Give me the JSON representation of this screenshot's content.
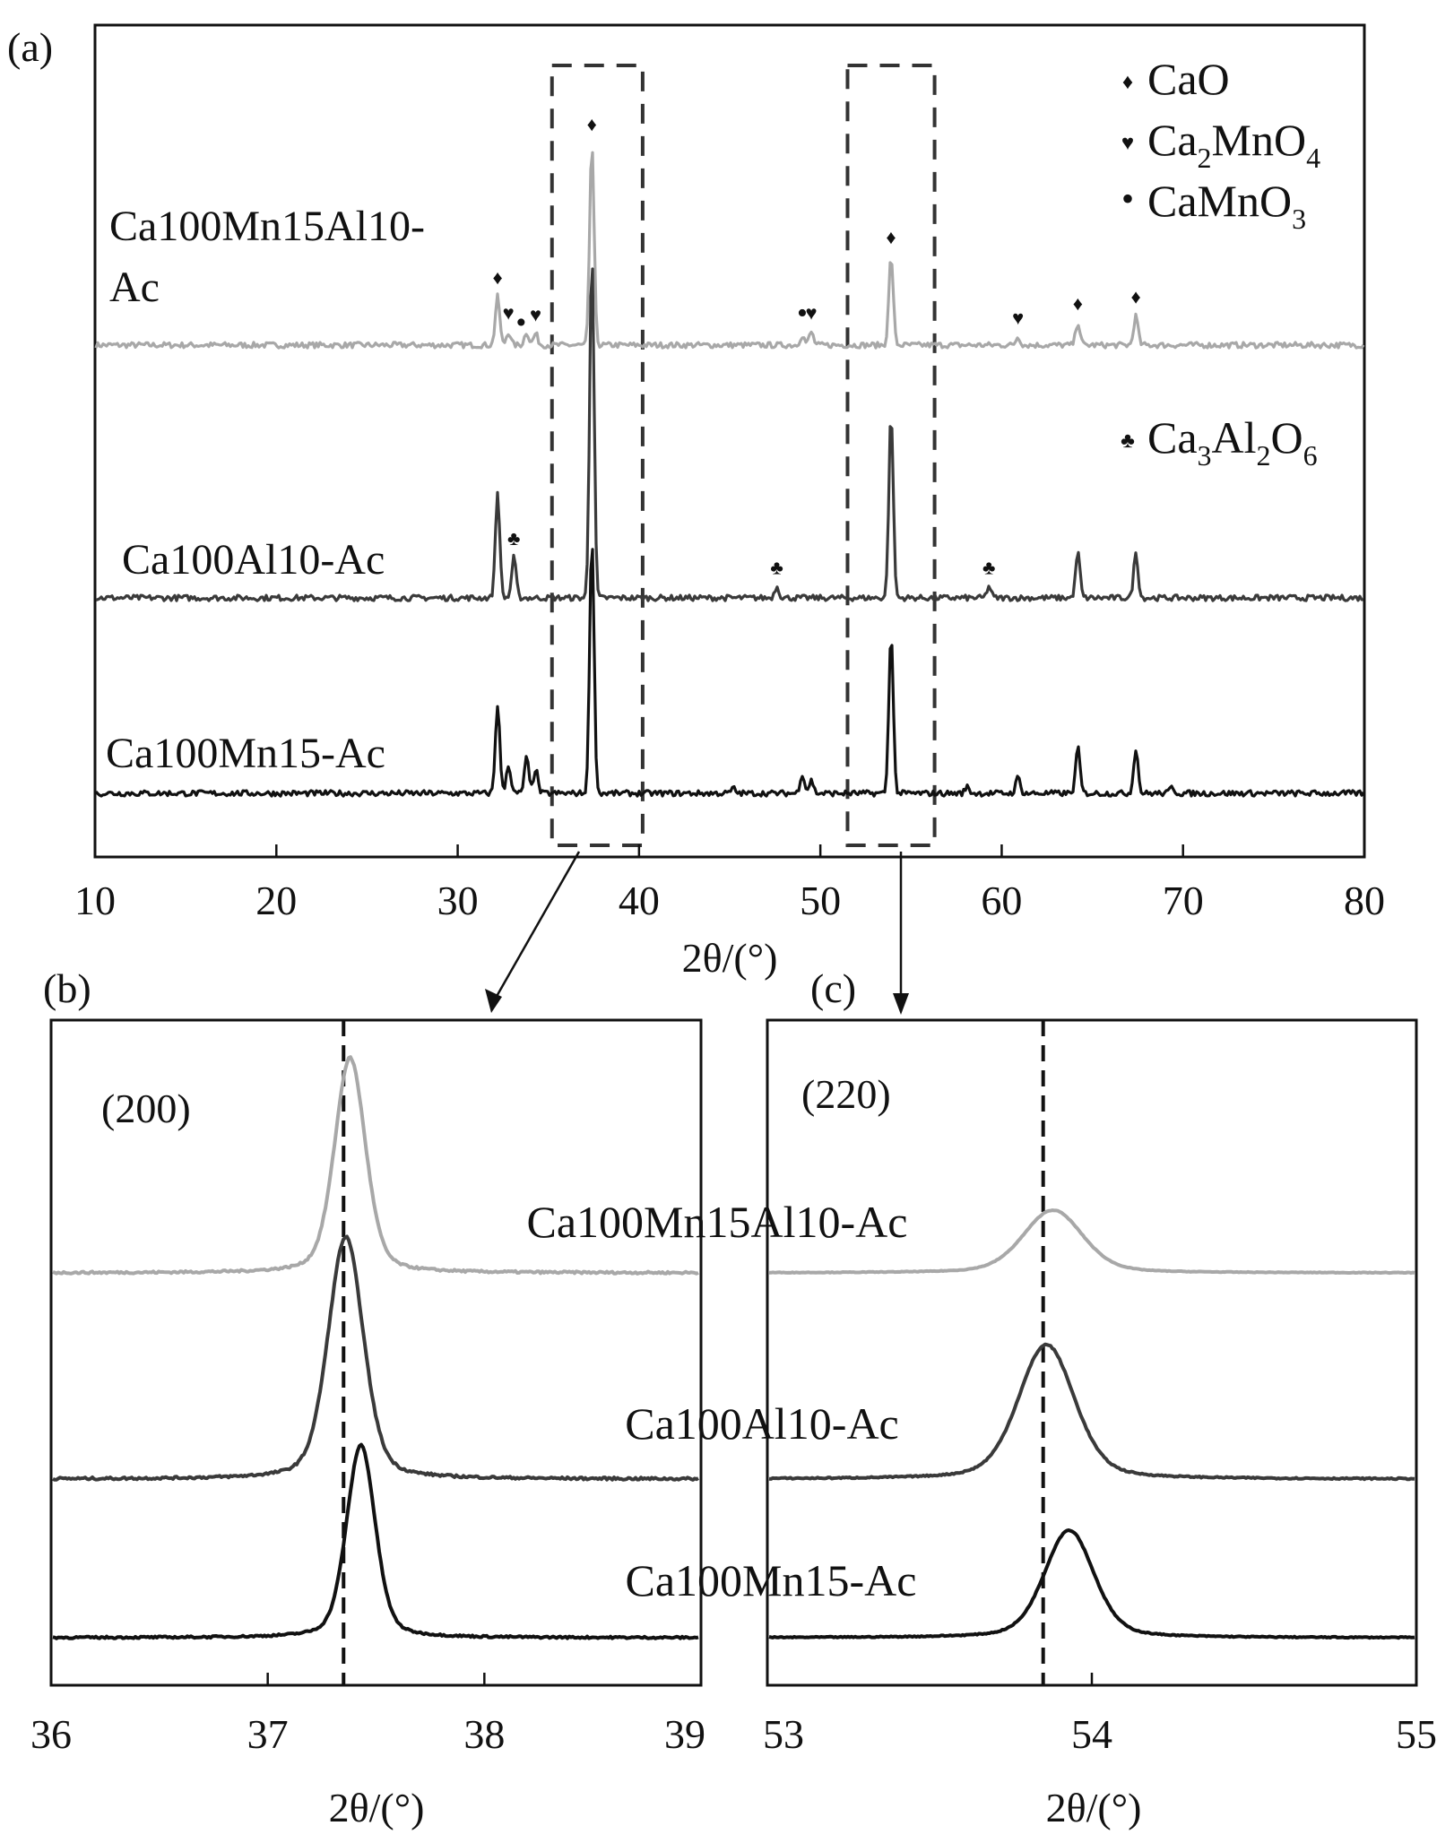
{
  "chart_data": [
    {
      "panel": "(a)",
      "type": "line",
      "title": "",
      "xlabel": "2θ/(°)",
      "ylabel": "",
      "xlim": [
        10,
        80
      ],
      "xticks": [
        10,
        20,
        30,
        40,
        50,
        60,
        70,
        80
      ],
      "grid": false,
      "series": [
        {
          "name": "Ca100Mn15Al10-Ac",
          "color": "#a8a8a8",
          "peaks": [
            [
              32.2,
              0.3
            ],
            [
              32.8,
              0.08
            ],
            [
              33.8,
              0.08
            ],
            [
              34.3,
              0.07
            ],
            [
              37.4,
              1.25
            ],
            [
              49.0,
              0.06
            ],
            [
              49.5,
              0.08
            ],
            [
              53.9,
              0.55
            ],
            [
              60.9,
              0.05
            ],
            [
              64.2,
              0.14
            ],
            [
              67.4,
              0.18
            ]
          ]
        },
        {
          "name": "Ca100Al10-Ac",
          "color": "#3a3a3a",
          "peaks": [
            [
              32.2,
              0.65
            ],
            [
              33.1,
              0.25
            ],
            [
              37.4,
              2.15
            ],
            [
              47.6,
              0.07
            ],
            [
              53.9,
              1.15
            ],
            [
              59.3,
              0.07
            ],
            [
              64.2,
              0.28
            ],
            [
              67.4,
              0.28
            ]
          ]
        },
        {
          "name": "Ca100Mn15-Ac",
          "color": "#111111",
          "peaks": [
            [
              32.2,
              0.55
            ],
            [
              32.8,
              0.18
            ],
            [
              33.8,
              0.22
            ],
            [
              34.3,
              0.15
            ],
            [
              37.4,
              1.6
            ],
            [
              45.2,
              0.03
            ],
            [
              49.0,
              0.12
            ],
            [
              49.5,
              0.08
            ],
            [
              53.9,
              1.0
            ],
            [
              58.1,
              0.04
            ],
            [
              60.9,
              0.1
            ],
            [
              64.2,
              0.28
            ],
            [
              67.4,
              0.28
            ],
            [
              69.4,
              0.04
            ]
          ]
        }
      ],
      "legend": {
        "placement": "top-right",
        "entries": [
          {
            "symbol": "♦",
            "label": "CaO"
          },
          {
            "symbol": "♥",
            "label": "Ca",
            "sub1": "2",
            "mid": "MnO",
            "sub2": "4"
          },
          {
            "symbol": "•",
            "label": "CaMnO",
            "sub1": "3"
          },
          {
            "symbol": "♣",
            "label": "Ca",
            "sub1": "3",
            "mid": "Al",
            "sub2": "2",
            "tail": "O",
            "sub3": "6"
          }
        ]
      },
      "phase_markers": [
        {
          "series": 0,
          "x": 32.2,
          "symbol": "♦"
        },
        {
          "series": 0,
          "x": 32.8,
          "symbol": "♥"
        },
        {
          "series": 0,
          "x": 33.5,
          "symbol": "•"
        },
        {
          "series": 0,
          "x": 34.3,
          "symbol": "♥"
        },
        {
          "series": 0,
          "x": 37.4,
          "symbol": "♦"
        },
        {
          "series": 0,
          "x": 49.0,
          "symbol": "•"
        },
        {
          "series": 0,
          "x": 49.5,
          "symbol": "♥"
        },
        {
          "series": 0,
          "x": 53.9,
          "symbol": "♦"
        },
        {
          "series": 0,
          "x": 60.9,
          "symbol": "♥"
        },
        {
          "series": 0,
          "x": 64.2,
          "symbol": "♦"
        },
        {
          "series": 0,
          "x": 67.4,
          "symbol": "♦"
        },
        {
          "series": 1,
          "x": 33.1,
          "symbol": "♣"
        },
        {
          "series": 1,
          "x": 47.6,
          "symbol": "♣"
        },
        {
          "series": 1,
          "x": 59.3,
          "symbol": "♣"
        }
      ],
      "zoom_boxes": [
        [
          35.2,
          40.2
        ],
        [
          51.5,
          56.3
        ]
      ]
    },
    {
      "panel": "(b)",
      "type": "line",
      "annotation": "(200)",
      "xlabel": "2θ/(°)",
      "xlim": [
        36,
        39
      ],
      "xticks": [
        36,
        37,
        38,
        39
      ],
      "reference_line": 37.35,
      "series": [
        {
          "name": "Ca100Mn15Al10-Ac",
          "color": "#a8a8a8",
          "peak_x": 37.38,
          "height": 1.0,
          "width": 0.07
        },
        {
          "name": "Ca100Al10-Ac",
          "color": "#3a3a3a",
          "peak_x": 37.36,
          "height": 1.0,
          "width": 0.08
        },
        {
          "name": "Ca100Mn15-Ac",
          "color": "#111111",
          "peak_x": 37.43,
          "height": 1.0,
          "width": 0.065
        }
      ]
    },
    {
      "panel": "(c)",
      "type": "line",
      "annotation": "(220)",
      "xlabel": "2θ/(°)",
      "xlim": [
        53,
        55
      ],
      "xticks": [
        53,
        54,
        55
      ],
      "reference_line": 53.85,
      "series": [
        {
          "name": "Ca100Mn15Al10-Ac",
          "color": "#a8a8a8",
          "peak_x": 53.88,
          "height": 1.0,
          "width": 0.09
        },
        {
          "name": "Ca100Al10-Ac",
          "color": "#3a3a3a",
          "peak_x": 53.86,
          "height": 1.0,
          "width": 0.085
        },
        {
          "name": "Ca100Mn15-Ac",
          "color": "#111111",
          "peak_x": 53.93,
          "height": 1.0,
          "width": 0.075
        }
      ]
    }
  ]
}
